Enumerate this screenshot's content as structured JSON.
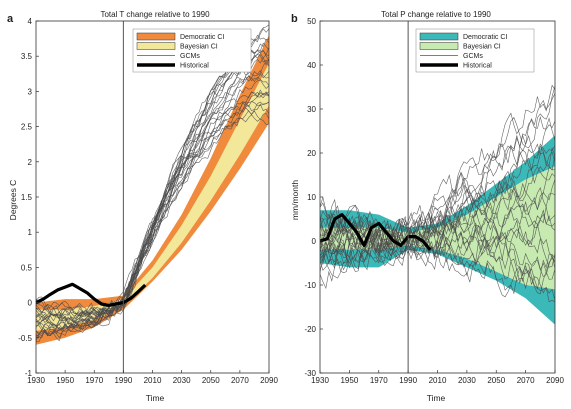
{
  "chart_data": [
    {
      "type": "line",
      "panel_letter": "a",
      "title": "Total T change relative to 1990",
      "xlabel": "Time",
      "ylabel": "Degrees C",
      "xlim": [
        1930,
        2090
      ],
      "ylim": [
        -1,
        4
      ],
      "x_ticks": [
        1930,
        1950,
        1970,
        1990,
        2010,
        2030,
        2050,
        2070,
        2090
      ],
      "y_ticks": [
        -1,
        -0.5,
        0,
        0.5,
        1,
        1.5,
        2,
        2.5,
        3,
        3.5,
        4
      ],
      "vertical_line_x": 1990,
      "legend_position": "top-center",
      "legend": [
        {
          "label": "Democratic CI",
          "kind": "band",
          "color": "#f08a3c"
        },
        {
          "label": "Bayesian CI",
          "kind": "band",
          "color": "#f3e79a"
        },
        {
          "label": "GCMs",
          "kind": "thin-line",
          "color": "#555555"
        },
        {
          "label": "Historical",
          "kind": "thick-line",
          "color": "#000000"
        }
      ],
      "democratic_ci": {
        "x": [
          1930,
          1950,
          1970,
          1990,
          2010,
          2030,
          2050,
          2070,
          2090
        ],
        "lower": [
          -0.6,
          -0.5,
          -0.35,
          -0.1,
          0.3,
          0.75,
          1.3,
          1.9,
          2.55
        ],
        "upper": [
          0.0,
          0.05,
          0.05,
          0.1,
          0.6,
          1.25,
          2.05,
          2.95,
          3.8
        ]
      },
      "bayesian_ci": {
        "x": [
          1930,
          1950,
          1970,
          1990,
          2010,
          2030,
          2050,
          2070,
          2090
        ],
        "lower": [
          -0.4,
          -0.35,
          -0.25,
          -0.05,
          0.35,
          0.85,
          1.45,
          2.1,
          2.8
        ],
        "upper": [
          -0.1,
          -0.1,
          -0.05,
          0.05,
          0.5,
          1.1,
          1.8,
          2.6,
          3.4
        ]
      },
      "historical": {
        "x": [
          1930,
          1935,
          1940,
          1945,
          1950,
          1955,
          1960,
          1965,
          1970,
          1975,
          1980,
          1985,
          1990,
          1995,
          2000,
          2005
        ],
        "y": [
          0.0,
          0.05,
          0.12,
          0.18,
          0.22,
          0.26,
          0.2,
          0.14,
          0.05,
          -0.02,
          -0.04,
          -0.02,
          0.0,
          0.06,
          0.15,
          0.25
        ]
      },
      "gcm_model_count": 24,
      "gcm_start_range": [
        -0.5,
        0.0
      ],
      "gcm_end_range": [
        2.6,
        3.9
      ]
    },
    {
      "type": "line",
      "panel_letter": "b",
      "title": "Total P change relative to 1990",
      "xlabel": "Time",
      "ylabel": "mm/month",
      "xlim": [
        1930,
        2090
      ],
      "ylim": [
        -30,
        50
      ],
      "x_ticks": [
        1930,
        1950,
        1970,
        1990,
        2010,
        2030,
        2050,
        2070,
        2090
      ],
      "y_ticks": [
        -30,
        -20,
        -10,
        0,
        10,
        20,
        30,
        40,
        50
      ],
      "vertical_line_x": 1990,
      "legend_position": "top-center",
      "legend": [
        {
          "label": "Democratic CI",
          "kind": "band",
          "color": "#3bb8b8"
        },
        {
          "label": "Bayesian CI",
          "kind": "band",
          "color": "#c6eab0"
        },
        {
          "label": "GCMs",
          "kind": "thin-line",
          "color": "#555555"
        },
        {
          "label": "Historical",
          "kind": "thick-line",
          "color": "#000000"
        }
      ],
      "democratic_ci": {
        "x": [
          1930,
          1950,
          1970,
          1990,
          2010,
          2030,
          2050,
          2070,
          2090
        ],
        "lower": [
          -5,
          -6,
          -6,
          -2,
          -3,
          -6,
          -9,
          -13,
          -19
        ],
        "upper": [
          7,
          7,
          6,
          3,
          4,
          8,
          13,
          18,
          24
        ]
      },
      "bayesian_ci": {
        "x": [
          1930,
          1950,
          1970,
          1990,
          2010,
          2030,
          2050,
          2070,
          2090
        ],
        "lower": [
          -2,
          -2,
          -2,
          -1,
          -2,
          -4,
          -7,
          -10,
          -11
        ],
        "upper": [
          3,
          3,
          3,
          2,
          3,
          6,
          10,
          14,
          17
        ]
      },
      "historical": {
        "x": [
          1930,
          1935,
          1940,
          1945,
          1950,
          1955,
          1960,
          1965,
          1970,
          1975,
          1980,
          1985,
          1990,
          1995,
          2000,
          2005
        ],
        "y": [
          0,
          0.5,
          5,
          6,
          4,
          2,
          -1,
          3,
          4,
          2,
          0,
          -1,
          1,
          1,
          0,
          -2
        ]
      },
      "gcm_model_count": 24,
      "gcm_start_range": [
        -6,
        6
      ],
      "gcm_end_range": [
        -14,
        34
      ]
    }
  ]
}
